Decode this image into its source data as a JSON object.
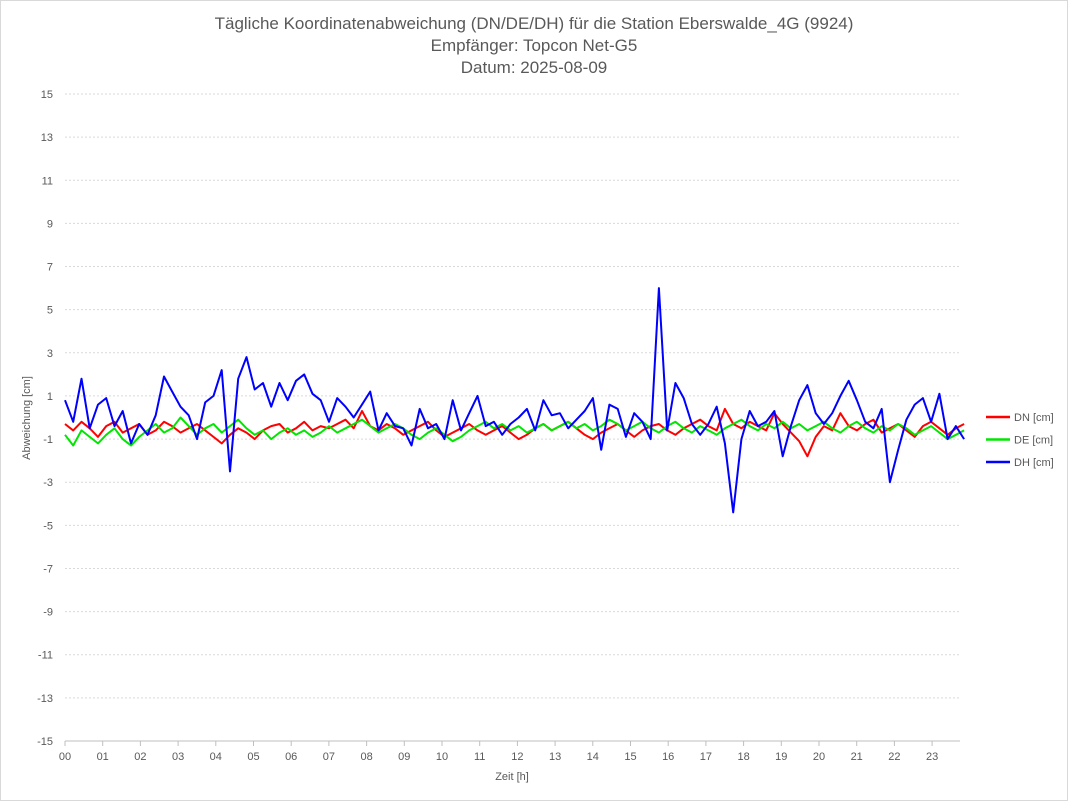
{
  "chart_data": {
    "type": "line",
    "title_lines": [
      "Tägliche Koordinatenabweichung (DN/DE/DH) für die Station Eberswalde_4G (9924)",
      "Empfänger: Topcon Net-G5",
      "Datum: 2025-08-09"
    ],
    "xlabel": "Zeit [h]",
    "ylabel": "Abweichung [cm]",
    "xlim": [
      0,
      24
    ],
    "ylim": [
      -15,
      15
    ],
    "x_ticks": [
      0,
      1,
      2,
      3,
      4,
      5,
      6,
      7,
      8,
      9,
      10,
      11,
      12,
      13,
      14,
      15,
      16,
      17,
      18,
      19,
      20,
      21,
      22,
      23
    ],
    "x_tick_labels": [
      "00",
      "01",
      "02",
      "03",
      "04",
      "05",
      "06",
      "07",
      "08",
      "09",
      "10",
      "11",
      "12",
      "13",
      "14",
      "15",
      "16",
      "17",
      "18",
      "19",
      "20",
      "21",
      "22",
      "23"
    ],
    "y_ticks": [
      15,
      13,
      11,
      9,
      7,
      5,
      3,
      1,
      -1,
      -3,
      -5,
      -7,
      -9,
      -11,
      -13,
      -15
    ],
    "y_tick_labels": [
      "15",
      "13",
      "11",
      "9",
      "7",
      "5",
      "3",
      "1",
      "-1",
      "-3",
      "-5",
      "-7",
      "-9",
      "-11",
      "-13",
      "-15"
    ],
    "grid": true,
    "legend_position": "right",
    "sample_interval_h": 0.25,
    "series": [
      {
        "name": "DN [cm]",
        "color": "#ff0000",
        "values": [
          -0.3,
          -0.6,
          -0.2,
          -0.5,
          -0.9,
          -0.4,
          -0.2,
          -0.7,
          -0.5,
          -0.3,
          -0.8,
          -0.6,
          -0.2,
          -0.4,
          -0.7,
          -0.5,
          -0.3,
          -0.6,
          -0.9,
          -1.2,
          -0.8,
          -0.5,
          -0.7,
          -1.0,
          -0.6,
          -0.4,
          -0.3,
          -0.7,
          -0.5,
          -0.2,
          -0.6,
          -0.4,
          -0.5,
          -0.3,
          -0.1,
          -0.5,
          0.3,
          -0.4,
          -0.6,
          -0.3,
          -0.5,
          -0.8,
          -0.6,
          -0.4,
          -0.2,
          -0.6,
          -0.9,
          -0.7,
          -0.5,
          -0.3,
          -0.6,
          -0.8,
          -0.6,
          -0.4,
          -0.7,
          -1.0,
          -0.8,
          -0.5,
          -0.3,
          -0.6,
          -0.4,
          -0.2,
          -0.5,
          -0.8,
          -1.0,
          -0.7,
          -0.5,
          -0.3,
          -0.6,
          -0.9,
          -0.6,
          -0.4,
          -0.3,
          -0.6,
          -0.8,
          -0.5,
          -0.3,
          -0.1,
          -0.4,
          -0.6,
          0.4,
          -0.3,
          -0.5,
          -0.2,
          -0.4,
          -0.6,
          0.2,
          -0.3,
          -0.7,
          -1.1,
          -1.8,
          -0.9,
          -0.4,
          -0.6,
          0.2,
          -0.4,
          -0.6,
          -0.3,
          -0.1,
          -0.7,
          -0.5,
          -0.3,
          -0.6,
          -0.9,
          -0.4,
          -0.2,
          -0.5,
          -0.8,
          -0.5,
          -0.3
        ],
        "note": "values at 15-minute steps from 00:00 to ~23:45"
      },
      {
        "name": "DE [cm]",
        "color": "#00e600",
        "values": [
          -0.8,
          -1.3,
          -0.6,
          -0.9,
          -1.2,
          -0.8,
          -0.5,
          -1.0,
          -1.3,
          -0.9,
          -0.6,
          -0.3,
          -0.7,
          -0.5,
          0.0,
          -0.4,
          -0.8,
          -0.5,
          -0.3,
          -0.7,
          -0.4,
          -0.1,
          -0.5,
          -0.8,
          -0.6,
          -1.0,
          -0.7,
          -0.5,
          -0.8,
          -0.6,
          -0.9,
          -0.7,
          -0.4,
          -0.7,
          -0.5,
          -0.3,
          -0.1,
          -0.4,
          -0.7,
          -0.5,
          -0.3,
          -0.5,
          -0.8,
          -1.0,
          -0.7,
          -0.5,
          -0.8,
          -1.1,
          -0.9,
          -0.6,
          -0.4,
          -0.2,
          -0.5,
          -0.3,
          -0.6,
          -0.4,
          -0.7,
          -0.5,
          -0.3,
          -0.6,
          -0.4,
          -0.2,
          -0.5,
          -0.3,
          -0.6,
          -0.4,
          -0.1,
          -0.3,
          -0.6,
          -0.4,
          -0.2,
          -0.5,
          -0.7,
          -0.4,
          -0.2,
          -0.5,
          -0.7,
          -0.4,
          -0.6,
          -0.8,
          -0.5,
          -0.3,
          -0.1,
          -0.4,
          -0.6,
          -0.3,
          -0.5,
          -0.2,
          -0.5,
          -0.3,
          -0.6,
          -0.4,
          -0.2,
          -0.5,
          -0.7,
          -0.4,
          -0.2,
          -0.5,
          -0.7,
          -0.4,
          -0.6,
          -0.3,
          -0.5,
          -0.8,
          -0.6,
          -0.4,
          -0.7,
          -1.0,
          -0.8,
          -0.6
        ],
        "note": "values at 15-minute steps from 00:00 to ~23:45"
      },
      {
        "name": "DH [cm]",
        "color": "#0000ff",
        "values": [
          0.8,
          -0.2,
          1.8,
          -0.5,
          0.6,
          0.9,
          -0.4,
          0.3,
          -1.2,
          -0.3,
          -0.8,
          0.1,
          1.9,
          1.2,
          0.5,
          0.1,
          -1.0,
          0.7,
          1.0,
          2.2,
          -2.5,
          1.8,
          2.8,
          1.3,
          1.6,
          0.5,
          1.6,
          0.8,
          1.7,
          2.0,
          1.1,
          0.8,
          -0.2,
          0.9,
          0.5,
          0.0,
          0.6,
          1.2,
          -0.6,
          0.2,
          -0.4,
          -0.5,
          -1.3,
          0.4,
          -0.5,
          -0.3,
          -1.0,
          0.8,
          -0.6,
          0.2,
          1.0,
          -0.4,
          -0.2,
          -0.8,
          -0.3,
          0.0,
          0.4,
          -0.6,
          0.8,
          0.1,
          0.2,
          -0.5,
          -0.1,
          0.3,
          0.9,
          -1.5,
          0.6,
          0.4,
          -0.9,
          0.2,
          -0.2,
          -1.0,
          6.0,
          -0.6,
          1.6,
          0.9,
          -0.3,
          -0.8,
          -0.3,
          0.5,
          -1.2,
          -4.4,
          -1.0,
          0.3,
          -0.4,
          -0.2,
          0.3,
          -1.8,
          -0.4,
          0.8,
          1.5,
          0.2,
          -0.3,
          0.2,
          1.0,
          1.7,
          0.8,
          -0.2,
          -0.5,
          0.4,
          -3.0,
          -1.5,
          -0.1,
          0.6,
          0.9,
          -0.2,
          1.1,
          -1.0,
          -0.4,
          -1.0
        ],
        "note": "values at 15-minute steps from 00:00 to ~23:45 (visually approximated)"
      }
    ]
  }
}
